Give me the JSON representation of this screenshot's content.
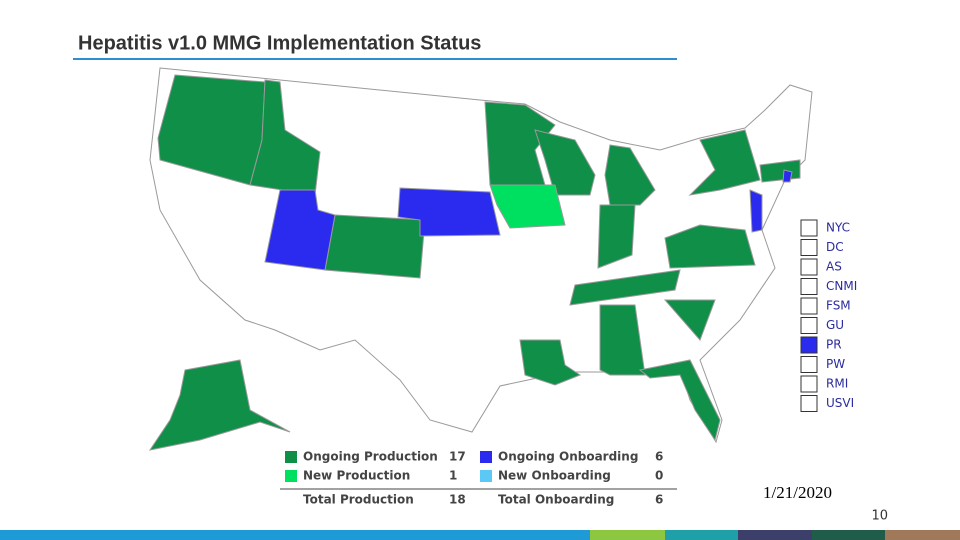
{
  "header": {
    "title": "Hepatitis v1.0 MMG Implementation Status"
  },
  "territories": [
    {
      "name": "NYC"
    },
    {
      "name": "DC"
    },
    {
      "name": "AS"
    },
    {
      "name": "CNMI"
    },
    {
      "name": "FSM"
    },
    {
      "name": "GU"
    },
    {
      "name": "PR",
      "color": "#2b2bf0"
    },
    {
      "name": "PW"
    },
    {
      "name": "RMI"
    },
    {
      "name": "USVI"
    }
  ],
  "legend": {
    "items": [
      {
        "label": "Ongoing Production",
        "count": 17,
        "color": "#0f8f47"
      },
      {
        "label": "New Production",
        "count": 1,
        "color": "#00e060"
      },
      {
        "label": "Ongoing Onboarding",
        "count": 6,
        "color": "#2b2bf0"
      },
      {
        "label": "New Onboarding",
        "count": 0,
        "color": "#5bc8f5"
      }
    ],
    "totals": [
      {
        "label": "Total Production",
        "count": 18
      },
      {
        "label": "Total Onboarding",
        "count": 6
      }
    ]
  },
  "footer": {
    "date": "1/21/2020",
    "page": 10
  }
}
